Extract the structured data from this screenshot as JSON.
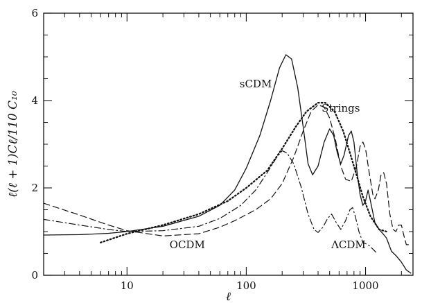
{
  "chart_data": {
    "type": "line",
    "xlabel": "ℓ",
    "ylabel": "ℓ(ℓ + 1)Cℓ/110 C₁₀",
    "x_scale": "log",
    "xlim": [
      2,
      2500
    ],
    "ylim": [
      0,
      6
    ],
    "x_ticks": [
      {
        "value": 10,
        "label": "10"
      },
      {
        "value": 100,
        "label": "100"
      },
      {
        "value": 1000,
        "label": "1000"
      }
    ],
    "y_ticks": [
      {
        "value": 0,
        "label": "0"
      },
      {
        "value": 2,
        "label": "2"
      },
      {
        "value": 4,
        "label": "4"
      },
      {
        "value": 6,
        "label": "6"
      }
    ],
    "grid": false,
    "legend": "none",
    "series": [
      {
        "name": "sCDM",
        "style": "solid",
        "label_at": [
          120,
          4.3
        ],
        "points": [
          [
            2,
            0.92
          ],
          [
            4,
            0.93
          ],
          [
            7,
            0.96
          ],
          [
            10,
            1.0
          ],
          [
            20,
            1.12
          ],
          [
            40,
            1.35
          ],
          [
            60,
            1.6
          ],
          [
            80,
            1.95
          ],
          [
            100,
            2.45
          ],
          [
            130,
            3.2
          ],
          [
            160,
            4.0
          ],
          [
            190,
            4.75
          ],
          [
            215,
            5.05
          ],
          [
            240,
            4.95
          ],
          [
            270,
            4.3
          ],
          [
            300,
            3.4
          ],
          [
            330,
            2.55
          ],
          [
            360,
            2.3
          ],
          [
            400,
            2.5
          ],
          [
            450,
            3.05
          ],
          [
            500,
            3.35
          ],
          [
            540,
            3.2
          ],
          [
            580,
            2.8
          ],
          [
            620,
            2.55
          ],
          [
            660,
            2.75
          ],
          [
            720,
            3.2
          ],
          [
            760,
            3.3
          ],
          [
            800,
            3.05
          ],
          [
            850,
            2.35
          ],
          [
            900,
            1.85
          ],
          [
            950,
            1.6
          ],
          [
            1000,
            1.7
          ],
          [
            1050,
            1.95
          ],
          [
            1100,
            1.7
          ],
          [
            1200,
            1.2
          ],
          [
            1300,
            1.05
          ],
          [
            1400,
            0.95
          ],
          [
            1500,
            0.85
          ],
          [
            1650,
            0.55
          ],
          [
            1800,
            0.45
          ],
          [
            2000,
            0.3
          ],
          [
            2200,
            0.12
          ],
          [
            2400,
            0.05
          ]
        ]
      },
      {
        "name": "Strings",
        "style": "dotted",
        "label_at": [
          620,
          3.75
        ],
        "points": [
          [
            6,
            0.75
          ],
          [
            10,
            0.95
          ],
          [
            20,
            1.15
          ],
          [
            40,
            1.4
          ],
          [
            70,
            1.7
          ],
          [
            100,
            2.0
          ],
          [
            150,
            2.4
          ],
          [
            200,
            2.9
          ],
          [
            260,
            3.4
          ],
          [
            320,
            3.75
          ],
          [
            400,
            3.95
          ],
          [
            460,
            3.95
          ],
          [
            550,
            3.75
          ],
          [
            650,
            3.3
          ],
          [
            750,
            2.75
          ],
          [
            850,
            2.25
          ],
          [
            950,
            1.8
          ],
          [
            1100,
            1.35
          ],
          [
            1300,
            1.05
          ],
          [
            1500,
            1.0
          ]
        ]
      },
      {
        "name": "OCDM",
        "style": "dashed",
        "label_at": [
          32,
          0.62
        ],
        "points": [
          [
            2,
            1.65
          ],
          [
            4,
            1.38
          ],
          [
            7,
            1.15
          ],
          [
            10,
            1.02
          ],
          [
            20,
            0.9
          ],
          [
            40,
            0.95
          ],
          [
            60,
            1.1
          ],
          [
            80,
            1.25
          ],
          [
            120,
            1.5
          ],
          [
            160,
            1.75
          ],
          [
            200,
            2.1
          ],
          [
            250,
            2.7
          ],
          [
            300,
            3.3
          ],
          [
            350,
            3.75
          ],
          [
            400,
            3.9
          ],
          [
            450,
            3.85
          ],
          [
            500,
            3.6
          ],
          [
            560,
            3.1
          ],
          [
            620,
            2.5
          ],
          [
            680,
            2.2
          ],
          [
            760,
            2.15
          ],
          [
            840,
            2.5
          ],
          [
            900,
            2.95
          ],
          [
            950,
            3.05
          ],
          [
            1000,
            2.9
          ],
          [
            1080,
            2.3
          ],
          [
            1150,
            1.85
          ],
          [
            1200,
            1.75
          ],
          [
            1280,
            1.95
          ],
          [
            1350,
            2.3
          ],
          [
            1420,
            2.35
          ],
          [
            1500,
            2.1
          ],
          [
            1600,
            1.4
          ],
          [
            1700,
            1.05
          ],
          [
            1800,
            1.0
          ],
          [
            1900,
            1.15
          ],
          [
            2000,
            1.15
          ],
          [
            2100,
            0.9
          ],
          [
            2200,
            0.7
          ],
          [
            2400,
            0.7
          ]
        ]
      },
      {
        "name": "ΛCDM",
        "style": "dashdot",
        "label_at": [
          720,
          0.62
        ],
        "points": [
          [
            2,
            1.28
          ],
          [
            4,
            1.15
          ],
          [
            7,
            1.05
          ],
          [
            10,
            1.0
          ],
          [
            20,
            1.02
          ],
          [
            40,
            1.12
          ],
          [
            60,
            1.3
          ],
          [
            90,
            1.6
          ],
          [
            120,
            1.95
          ],
          [
            150,
            2.35
          ],
          [
            180,
            2.7
          ],
          [
            200,
            2.85
          ],
          [
            220,
            2.8
          ],
          [
            250,
            2.55
          ],
          [
            290,
            2.0
          ],
          [
            330,
            1.4
          ],
          [
            370,
            1.05
          ],
          [
            400,
            0.98
          ],
          [
            440,
            1.1
          ],
          [
            480,
            1.3
          ],
          [
            520,
            1.4
          ],
          [
            570,
            1.2
          ],
          [
            620,
            1.05
          ],
          [
            680,
            1.25
          ],
          [
            740,
            1.5
          ],
          [
            780,
            1.55
          ],
          [
            820,
            1.35
          ],
          [
            880,
            1.0
          ],
          [
            950,
            0.75
          ],
          [
            1050,
            0.7
          ],
          [
            1150,
            0.6
          ],
          [
            1250,
            0.5
          ]
        ]
      }
    ]
  }
}
